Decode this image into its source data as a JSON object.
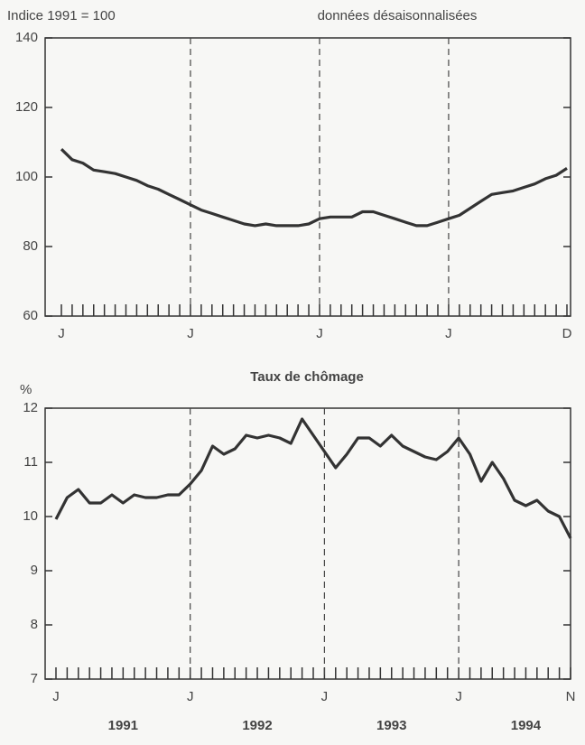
{
  "chart_data": [
    {
      "type": "line",
      "title": "données désaisonnalisées",
      "ylabel": "Indice 1991 = 100",
      "categories": [
        "J",
        null,
        null,
        null,
        null,
        null,
        null,
        null,
        null,
        null,
        null,
        null,
        "J",
        null,
        null,
        null,
        null,
        null,
        null,
        null,
        null,
        null,
        null,
        null,
        "J",
        null,
        null,
        null,
        null,
        null,
        null,
        null,
        null,
        null,
        null,
        null,
        "J",
        null,
        null,
        null,
        null,
        null,
        null,
        null,
        null,
        null,
        null,
        "D"
      ],
      "values": [
        108,
        105,
        104,
        102,
        101.5,
        101,
        100,
        99,
        97.5,
        96.5,
        95,
        93.5,
        92,
        90.5,
        89.5,
        88.5,
        87.5,
        86.5,
        86,
        86.5,
        86,
        86,
        86,
        86.5,
        88,
        88.5,
        88.5,
        88.5,
        90,
        90,
        89,
        88,
        87,
        86,
        86,
        87,
        88,
        89,
        91,
        93,
        95,
        95.5,
        96,
        97,
        98,
        99.5,
        100.5,
        102.5
      ],
      "color": "#333333",
      "ylim": [
        60,
        140
      ],
      "yticks": [
        60,
        80,
        100,
        120,
        140
      ]
    },
    {
      "type": "line",
      "title": "Taux de chômage",
      "ylabel": "%",
      "categories": [
        "J",
        null,
        null,
        null,
        null,
        null,
        null,
        null,
        null,
        null,
        null,
        null,
        "J",
        null,
        null,
        null,
        null,
        null,
        null,
        null,
        null,
        null,
        null,
        null,
        "J",
        null,
        null,
        null,
        null,
        null,
        null,
        null,
        null,
        null,
        null,
        null,
        "J",
        null,
        null,
        null,
        null,
        null,
        null,
        null,
        null,
        null,
        "N"
      ],
      "values": [
        9.95,
        10.35,
        10.5,
        10.25,
        10.25,
        10.4,
        10.25,
        10.4,
        10.35,
        10.35,
        10.4,
        10.4,
        10.6,
        10.85,
        11.3,
        11.15,
        11.25,
        11.5,
        11.45,
        11.5,
        11.45,
        11.35,
        11.8,
        11.5,
        11.2,
        10.9,
        11.15,
        11.45,
        11.45,
        11.3,
        11.5,
        11.3,
        11.2,
        11.1,
        11.05,
        11.2,
        11.45,
        11.15,
        10.65,
        11.0,
        10.7,
        10.3,
        10.2,
        10.3,
        10.1,
        10.0,
        9.6
      ],
      "color": "#333333",
      "ylim": [
        7,
        12
      ],
      "yticks": [
        7,
        8,
        9,
        10,
        11,
        12
      ],
      "year_labels": [
        "1991",
        "1992",
        "1993",
        "1994"
      ]
    }
  ]
}
